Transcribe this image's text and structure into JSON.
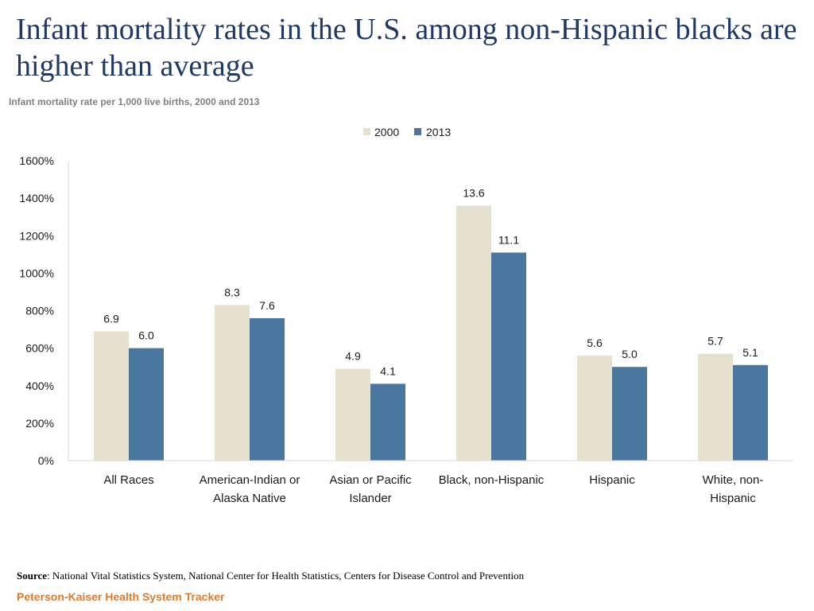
{
  "page": {
    "title": "Infant mortality rates in the U.S. among non-Hispanic blacks are higher than average",
    "subtitle": "Infant mortality rate per 1,000 live births, 2000 and 2013",
    "source_label": "Source",
    "source_text": ": National Vital Statistics System, National Center for Health Statistics, Centers for Disease Control and Prevention",
    "brand": "Peterson-Kaiser Health System Tracker"
  },
  "chart_data": {
    "type": "bar",
    "title": "Infant mortality rate per 1,000 live births, 2000 and 2013",
    "xlabel": "",
    "ylabel": "",
    "categories": [
      [
        "All Races"
      ],
      [
        "American-Indian or",
        "Alaska Native"
      ],
      [
        "Asian or Pacific",
        "Islander"
      ],
      [
        "Black, non-Hispanic"
      ],
      [
        "Hispanic"
      ],
      [
        "White, non-",
        "Hispanic"
      ]
    ],
    "series": [
      {
        "name": "2000",
        "color": "#e6e1cf",
        "values": [
          6.9,
          8.3,
          4.9,
          13.6,
          5.6,
          5.7
        ]
      },
      {
        "name": "2013",
        "color": "#4a77a0",
        "values": [
          6.0,
          7.6,
          4.1,
          11.1,
          5.0,
          5.1
        ]
      }
    ],
    "ylim": [
      0,
      16
    ],
    "yticks": [
      "0%",
      "200%",
      "400%",
      "600%",
      "800%",
      "1000%",
      "1200%",
      "1400%",
      "1600%"
    ],
    "legend_position": "top-center",
    "grid": false
  }
}
